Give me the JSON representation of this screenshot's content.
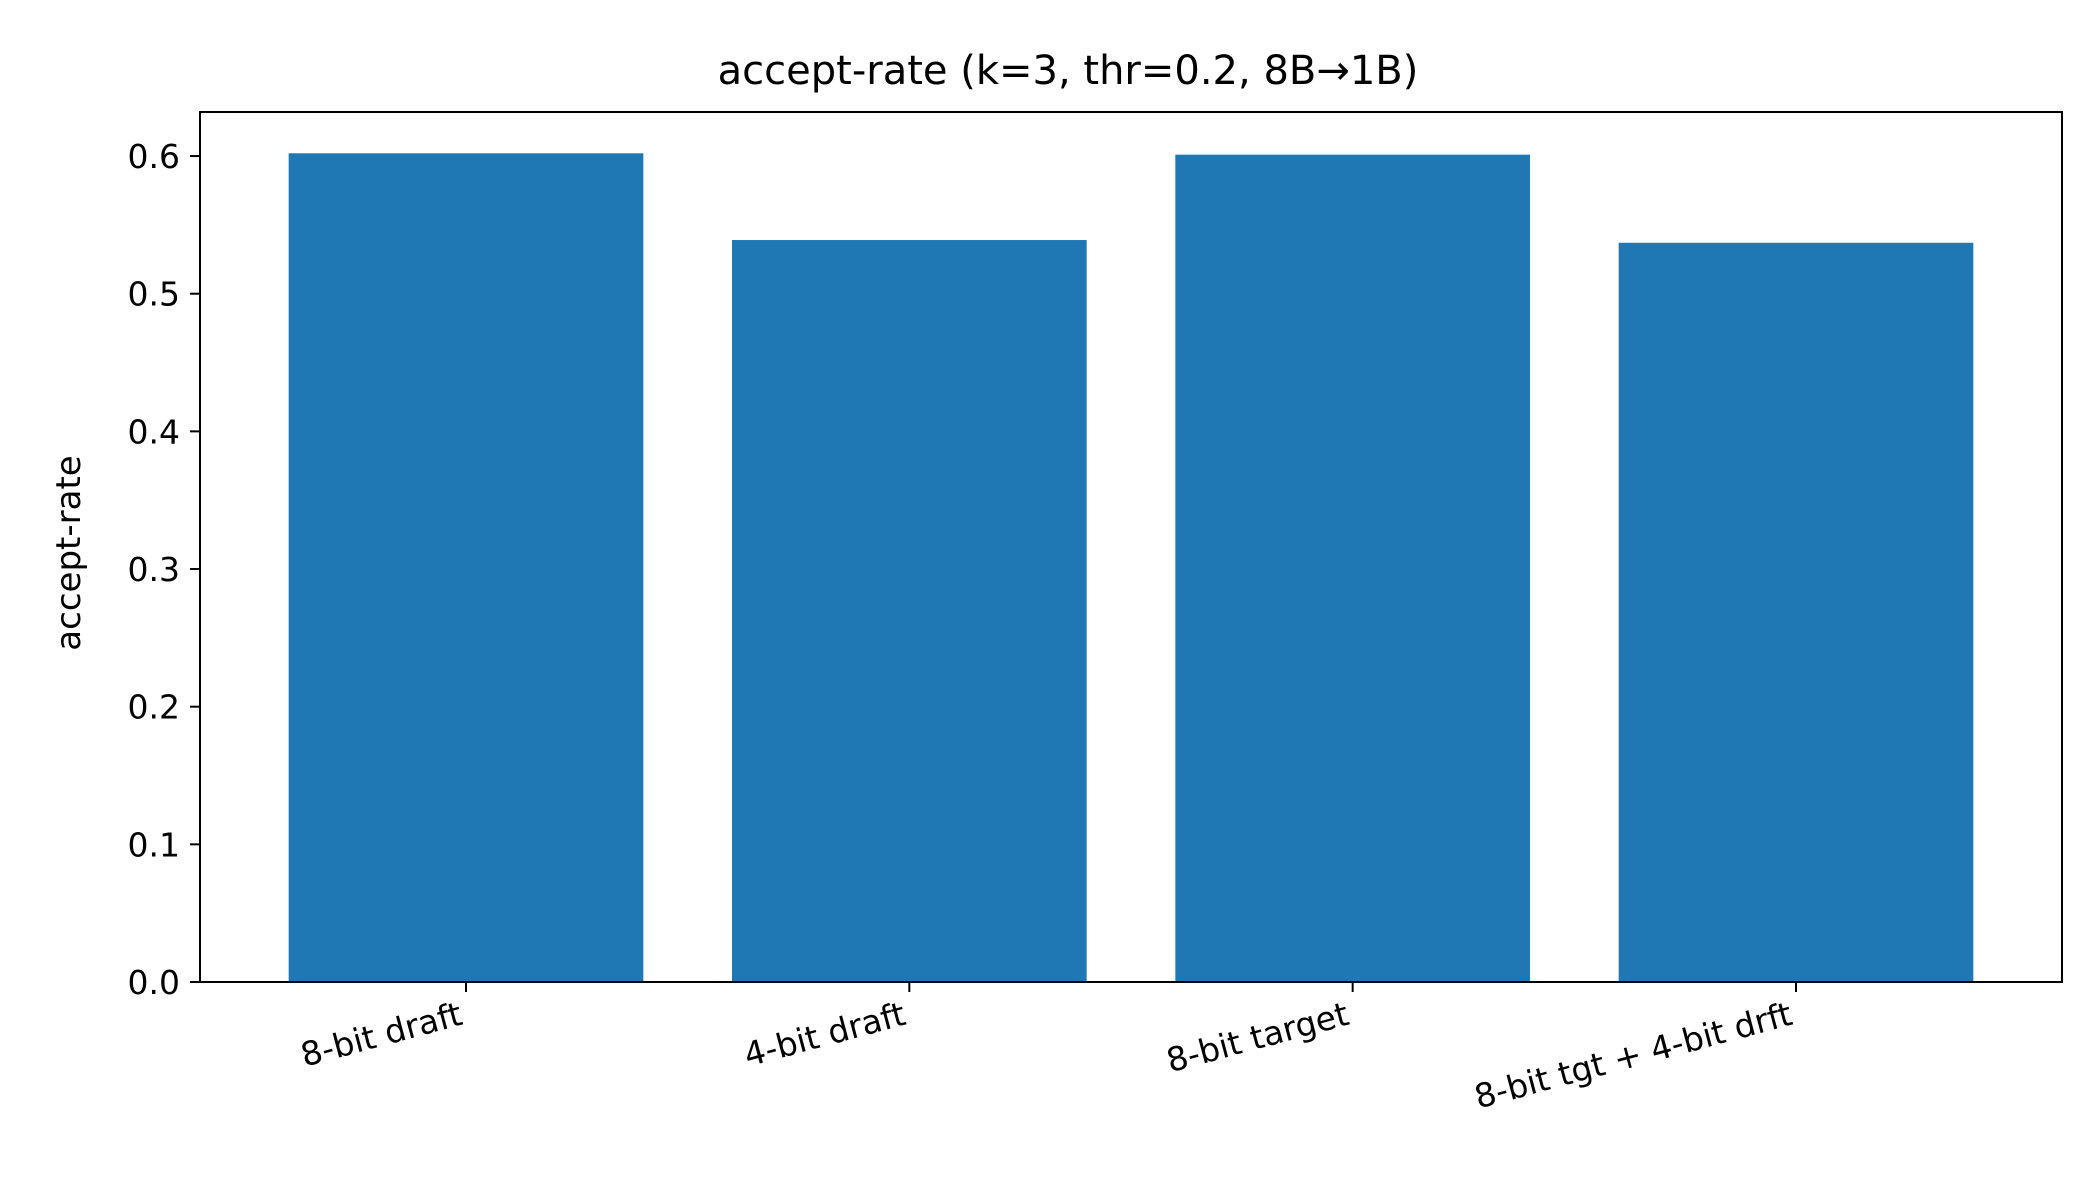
{
  "chart_data": {
    "type": "bar",
    "title": "accept-rate (k=3, thr=0.2, 8B→1B)",
    "xlabel": "",
    "ylabel": "accept-rate",
    "categories": [
      "8-bit draft",
      "4-bit draft",
      "8-bit target",
      "8-bit tgt + 4-bit drft"
    ],
    "values": [
      0.602,
      0.539,
      0.601,
      0.537
    ],
    "ylim": [
      0,
      0.632
    ],
    "yticks": [
      "0.0",
      "0.1",
      "0.2",
      "0.3",
      "0.4",
      "0.5",
      "0.6"
    ],
    "bar_color": "#1f77b4",
    "grid": false,
    "legend": "none"
  }
}
